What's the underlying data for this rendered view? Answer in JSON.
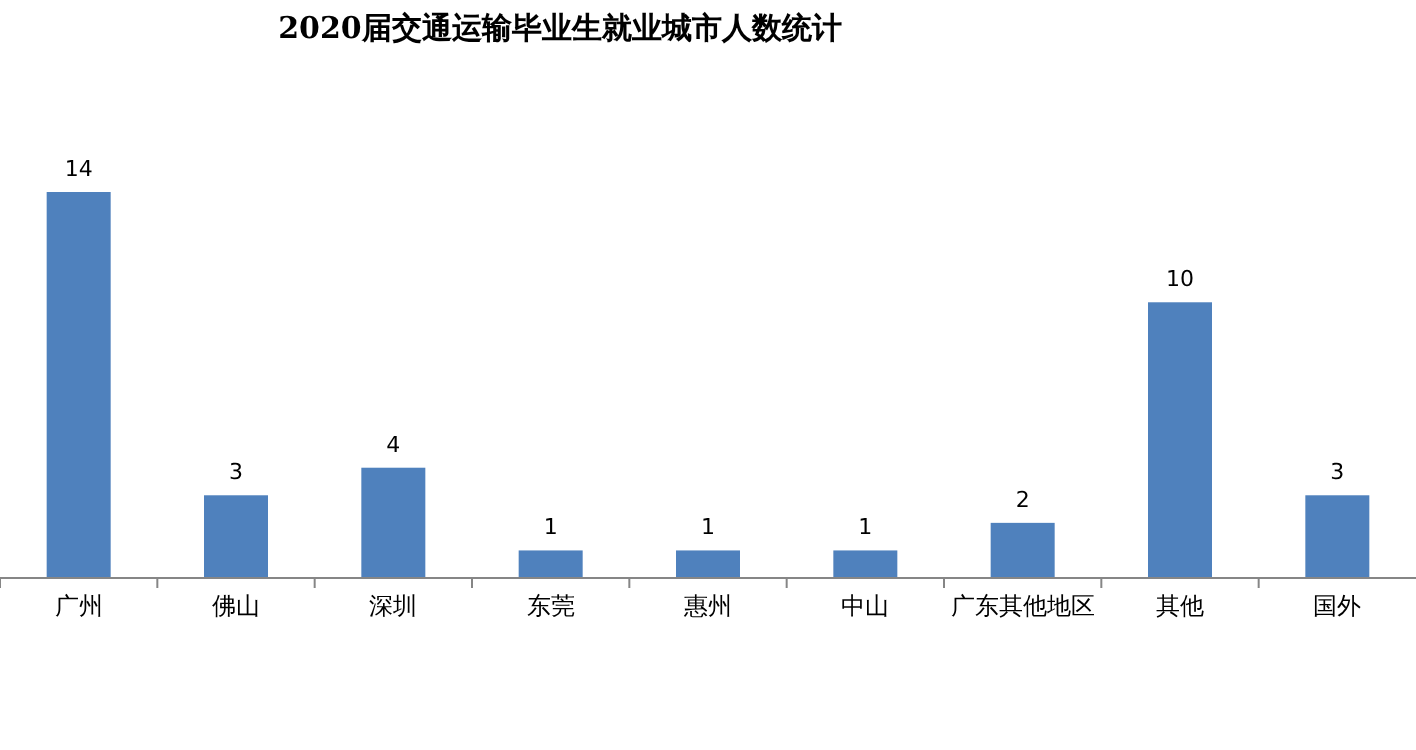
{
  "chart_data": {
    "type": "bar",
    "title": "2020届交通运输毕业生就业城市人数统计",
    "categories": [
      "广州",
      "佛山",
      "深圳",
      "东莞",
      "惠州",
      "中山",
      "广东其他地区",
      "其他",
      "国外"
    ],
    "values": [
      14,
      3,
      4,
      1,
      1,
      1,
      2,
      10,
      3
    ],
    "color": "#4f81bd",
    "data_labels": true,
    "grid": false,
    "legend": false
  }
}
